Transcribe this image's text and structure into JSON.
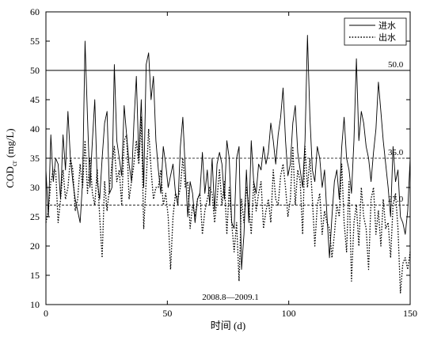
{
  "chart_data": {
    "type": "line",
    "title": "",
    "xlabel": "时间 (d)",
    "ylabel_main": "COD",
    "ylabel_sub": "cr",
    "ylabel_unit": "(mg/L)",
    "xlim": [
      0,
      150
    ],
    "ylim": [
      10,
      60
    ],
    "x_ticks": [
      0,
      50,
      100,
      150
    ],
    "y_ticks": [
      10,
      15,
      20,
      25,
      30,
      35,
      40,
      45,
      50,
      55,
      60
    ],
    "grid": false,
    "legend_position": "top-right",
    "annotation": "2008.8—2009.1",
    "reference_lines": [
      {
        "value": 50,
        "label": "50.0",
        "style": "solid"
      },
      {
        "value": 35,
        "label": "35.0",
        "style": "dashed"
      },
      {
        "value": 27,
        "label": "27.0",
        "style": "dashed"
      }
    ],
    "series": [
      {
        "name": "进水",
        "style": "solid",
        "values": [
          33,
          25,
          39,
          31,
          35,
          34,
          28,
          39,
          33,
          43,
          35,
          31,
          28,
          26,
          24,
          31,
          55,
          42,
          30,
          38,
          45,
          31,
          28,
          35,
          41,
          43,
          29,
          30,
          51,
          38,
          35,
          32,
          44,
          39,
          34,
          31,
          41,
          49,
          35,
          45,
          30,
          51,
          53,
          45,
          49,
          38,
          33,
          29,
          37,
          34,
          30,
          32,
          34,
          29,
          27,
          37,
          42,
          33,
          25,
          31,
          29,
          24,
          28,
          29,
          36,
          29,
          33,
          27,
          35,
          26,
          34,
          36,
          34,
          28,
          38,
          35,
          24,
          23,
          35,
          37,
          16,
          22,
          33,
          24,
          38,
          31,
          29,
          34,
          33,
          37,
          34,
          36,
          41,
          38,
          34,
          39,
          42,
          47,
          38,
          32,
          34,
          41,
          44,
          36,
          33,
          30,
          38,
          56,
          42,
          33,
          31,
          37,
          35,
          30,
          33,
          25,
          18,
          25,
          31,
          33,
          28,
          37,
          42,
          35,
          33,
          29,
          38,
          52,
          38,
          43,
          41,
          37,
          35,
          31,
          36,
          40,
          48,
          43,
          38,
          34,
          30,
          25,
          37,
          31,
          33,
          25,
          24,
          22,
          26,
          35
        ]
      },
      {
        "name": "出水",
        "style": "dotted",
        "values": [
          24,
          26,
          31,
          33,
          33,
          24,
          28,
          33,
          28,
          30,
          35,
          33,
          26,
          28,
          34,
          30,
          38,
          29,
          35,
          29,
          27,
          33,
          25,
          18,
          31,
          26,
          30,
          34,
          37,
          31,
          33,
          27,
          38,
          39,
          28,
          31,
          34,
          38,
          34,
          42,
          23,
          31,
          40,
          33,
          28,
          30,
          30,
          33,
          27,
          29,
          25,
          16,
          25,
          29,
          28,
          30,
          35,
          30,
          31,
          23,
          27,
          25,
          28,
          29,
          22,
          26,
          28,
          30,
          29,
          24,
          28,
          33,
          27,
          31,
          22,
          30,
          24,
          19,
          24,
          14,
          28,
          24,
          30,
          27,
          22,
          31,
          26,
          29,
          31,
          23,
          26,
          28,
          24,
          33,
          28,
          27,
          32,
          34,
          30,
          25,
          28,
          37,
          27,
          33,
          31,
          22,
          37,
          30,
          35,
          28,
          20,
          27,
          29,
          22,
          26,
          24,
          23,
          18,
          22,
          27,
          25,
          34,
          24,
          19,
          31,
          14,
          24,
          27,
          20,
          30,
          25,
          23,
          16,
          28,
          30,
          22,
          26,
          20,
          28,
          23,
          24,
          18,
          27,
          29,
          23,
          12,
          17,
          18,
          16,
          19
        ]
      }
    ]
  }
}
